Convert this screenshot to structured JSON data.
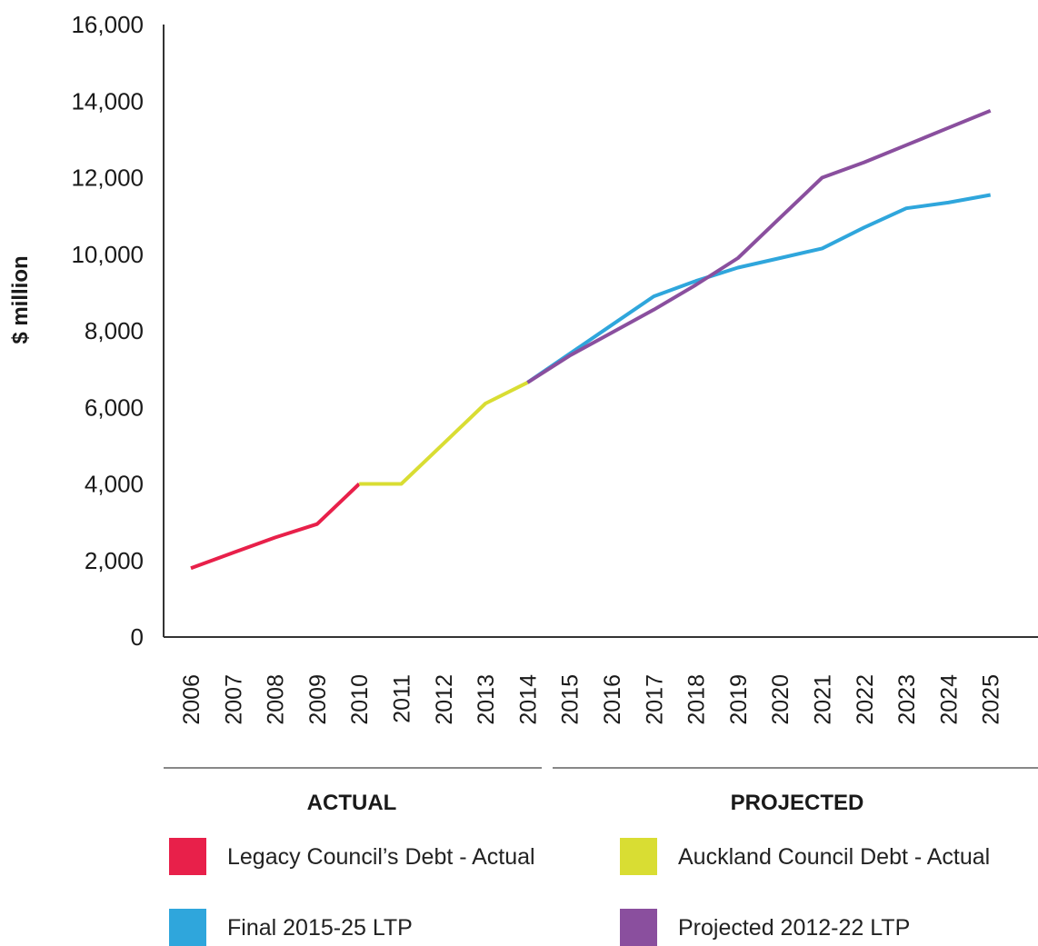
{
  "chart_data": {
    "type": "line",
    "title": "",
    "xlabel": "",
    "ylabel": "$ million",
    "ylim": [
      0,
      16000
    ],
    "yticks": [
      0,
      2000,
      4000,
      6000,
      8000,
      10000,
      12000,
      14000,
      16000
    ],
    "ytick_labels": [
      "0",
      "2,000",
      "4,000",
      "6,000",
      "8,000",
      "10,000",
      "12,000",
      "14,000",
      "16,000"
    ],
    "x": [
      "2006",
      "2007",
      "2008",
      "2009",
      "2010",
      "2011",
      "2012",
      "2013",
      "2014",
      "2015",
      "2016",
      "2017",
      "2018",
      "2019",
      "2020",
      "2021",
      "2022",
      "2023",
      "2024",
      "2025"
    ],
    "grid": false,
    "legend_position": "bottom",
    "sections": [
      {
        "label": "ACTUAL",
        "from": "2006",
        "to": "2014"
      },
      {
        "label": "PROJECTED",
        "from": "2014",
        "to": "2025"
      }
    ],
    "series": [
      {
        "name": "Legacy Council’s Debt - Actual",
        "color": "#e8204a",
        "x": [
          "2006",
          "2007",
          "2008",
          "2009",
          "2010"
        ],
        "values": [
          1800,
          2200,
          2600,
          2950,
          4000
        ]
      },
      {
        "name": "Auckland Council Debt - Actual",
        "color": "#d9dd33",
        "x": [
          "2010",
          "2011",
          "2012",
          "2013",
          "2014"
        ],
        "values": [
          4000,
          4000,
          5050,
          6100,
          6650
        ]
      },
      {
        "name": "Final 2015-25 LTP",
        "color": "#2fa6dc",
        "x": [
          "2014",
          "2015",
          "2016",
          "2017",
          "2018",
          "2019",
          "2020",
          "2021",
          "2022",
          "2023",
          "2024",
          "2025"
        ],
        "values": [
          6650,
          7400,
          8150,
          8900,
          9300,
          9650,
          9900,
          10150,
          10700,
          11200,
          11350,
          11550
        ]
      },
      {
        "name": "Projected 2012-22 LTP",
        "color": "#8a4f9e",
        "x": [
          "2014",
          "2015",
          "2016",
          "2017",
          "2018",
          "2019",
          "2020",
          "2021",
          "2022",
          "2023",
          "2024",
          "2025"
        ],
        "values": [
          6650,
          7350,
          7950,
          8550,
          9200,
          9900,
          10950,
          12000,
          12400,
          12850,
          13300,
          13750
        ]
      }
    ]
  }
}
